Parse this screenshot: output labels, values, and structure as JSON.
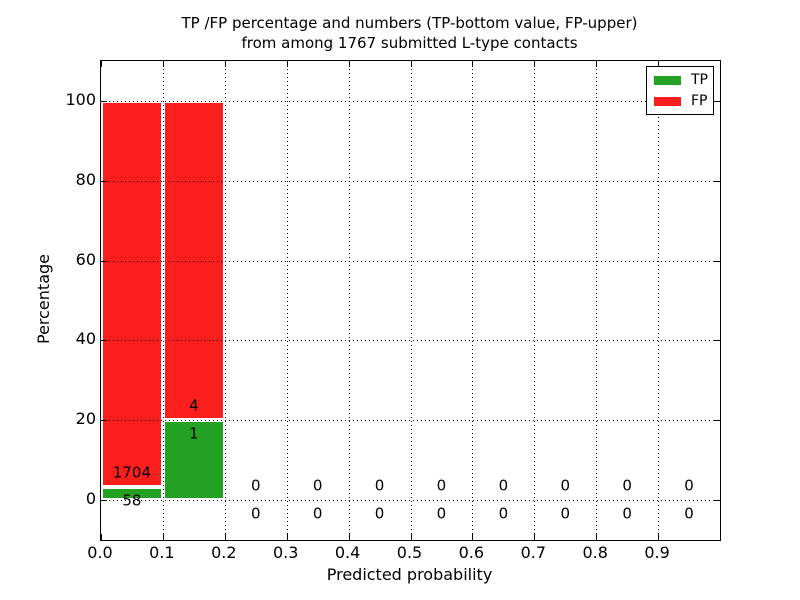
{
  "chart_data": {
    "type": "bar",
    "stacked": true,
    "title_line1": "TP /FP percentage and numbers (TP-bottom value, FP-upper)",
    "title_line2": "from among 1767 submitted L-type contacts",
    "xlabel": "Predicted probability",
    "ylabel": "Percentage",
    "xlim": [
      0.0,
      1.0
    ],
    "ylim": [
      -10,
      110
    ],
    "x_ticks": [
      "0.0",
      "0.1",
      "0.2",
      "0.3",
      "0.4",
      "0.5",
      "0.6",
      "0.7",
      "0.8",
      "0.9"
    ],
    "y_ticks": [
      "0",
      "20",
      "40",
      "60",
      "80",
      "100"
    ],
    "grid": "dotted black, both axes, drawn above bars",
    "total_submitted_contacts": 1767,
    "annotation_rule": "FP count printed above TP-bar top, TP count printed below it",
    "bins": [
      {
        "x_range": [
          0.0,
          0.1
        ],
        "tp_count": 58,
        "fp_count": 1704,
        "tp_pct": 3.29,
        "fp_pct": 96.71
      },
      {
        "x_range": [
          0.1,
          0.2
        ],
        "tp_count": 1,
        "fp_count": 4,
        "tp_pct": 20,
        "fp_pct": 80
      },
      {
        "x_range": [
          0.2,
          0.3
        ],
        "tp_count": 0,
        "fp_count": 0,
        "tp_pct": 0,
        "fp_pct": 0
      },
      {
        "x_range": [
          0.3,
          0.4
        ],
        "tp_count": 0,
        "fp_count": 0,
        "tp_pct": 0,
        "fp_pct": 0
      },
      {
        "x_range": [
          0.4,
          0.5
        ],
        "tp_count": 0,
        "fp_count": 0,
        "tp_pct": 0,
        "fp_pct": 0
      },
      {
        "x_range": [
          0.5,
          0.6
        ],
        "tp_count": 0,
        "fp_count": 0,
        "tp_pct": 0,
        "fp_pct": 0
      },
      {
        "x_range": [
          0.6,
          0.7
        ],
        "tp_count": 0,
        "fp_count": 0,
        "tp_pct": 0,
        "fp_pct": 0
      },
      {
        "x_range": [
          0.7,
          0.8
        ],
        "tp_count": 0,
        "fp_count": 0,
        "tp_pct": 0,
        "fp_pct": 0
      },
      {
        "x_range": [
          0.8,
          0.9
        ],
        "tp_count": 0,
        "fp_count": 0,
        "tp_pct": 0,
        "fp_pct": 0
      },
      {
        "x_range": [
          0.9,
          1.0
        ],
        "tp_count": 0,
        "fp_count": 0,
        "tp_pct": 0,
        "fp_pct": 0
      }
    ],
    "legend": {
      "position": "upper right",
      "entries": [
        {
          "label": "TP",
          "color": "#23a123"
        },
        {
          "label": "FP",
          "color": "#fc1d1d"
        }
      ]
    }
  },
  "colors": {
    "tp": "#23a123",
    "fp": "#fc1d1d",
    "bar_edge": "#ffffff",
    "grid": "#000000",
    "background": "#ffffff",
    "text": "#000000"
  }
}
